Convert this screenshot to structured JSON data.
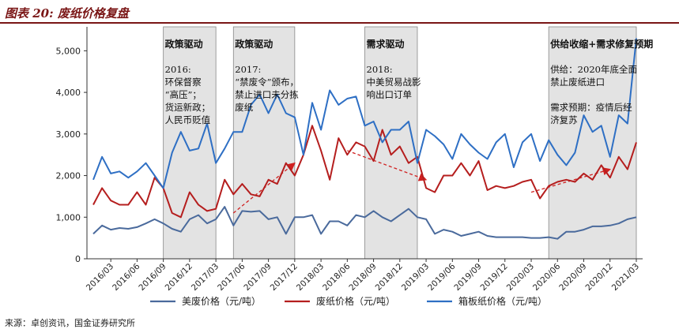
{
  "title": "图表 20:  废纸价格复盘",
  "source": "来源：卓创资讯，国金证券研究所",
  "chart_data": {
    "type": "line",
    "x": [
      "2016/01",
      "2016/02",
      "2016/03",
      "2016/04",
      "2016/05",
      "2016/06",
      "2016/07",
      "2016/08",
      "2016/09",
      "2016/10",
      "2016/11",
      "2016/12",
      "2017/01",
      "2017/02",
      "2017/03",
      "2017/04",
      "2017/05",
      "2017/06",
      "2017/07",
      "2017/08",
      "2017/09",
      "2017/10",
      "2017/11",
      "2017/12",
      "2018/01",
      "2018/02",
      "2018/03",
      "2018/04",
      "2018/05",
      "2018/06",
      "2018/07",
      "2018/08",
      "2018/09",
      "2018/10",
      "2018/11",
      "2018/12",
      "2019/01",
      "2019/02",
      "2019/03",
      "2019/04",
      "2019/05",
      "2019/06",
      "2019/07",
      "2019/08",
      "2019/09",
      "2019/10",
      "2019/11",
      "2019/12",
      "2020/01",
      "2020/02",
      "2020/03",
      "2020/04",
      "2020/05",
      "2020/06",
      "2020/07",
      "2020/08",
      "2020/09",
      "2020/10",
      "2020/11",
      "2020/12",
      "2021/01",
      "2021/02",
      "2021/03"
    ],
    "xticks": [
      "2016/03",
      "2016/06",
      "2016/09",
      "2016/12",
      "2017/03",
      "2017/06",
      "2017/09",
      "2017/12",
      "2018/03",
      "2018/06",
      "2018/09",
      "2018/12",
      "2019/03",
      "2019/06",
      "2019/09",
      "2019/12",
      "2020/03",
      "2020/06",
      "2020/09",
      "2020/12",
      "2021/03"
    ],
    "ylim": [
      0,
      5500
    ],
    "yticks": [
      0,
      1000,
      2000,
      3000,
      4000,
      5000
    ],
    "ytick_labels": [
      "0",
      "1,000",
      "2,000",
      "3,000",
      "4,000",
      "5,000"
    ],
    "grid": false,
    "legend_position": "bottom",
    "series": [
      {
        "name": "美废价格（元/吨）",
        "color": "#4a6a9c",
        "values": [
          600,
          800,
          700,
          740,
          720,
          760,
          850,
          950,
          850,
          720,
          650,
          950,
          1050,
          850,
          950,
          1250,
          800,
          1150,
          1130,
          1150,
          950,
          1000,
          600,
          1000,
          1000,
          1050,
          600,
          900,
          900,
          800,
          1050,
          1000,
          1150,
          1000,
          900,
          1050,
          1200,
          1000,
          950,
          600,
          700,
          650,
          550,
          600,
          650,
          550,
          520,
          520,
          520,
          520,
          500,
          500,
          520,
          480,
          650,
          650,
          700,
          780,
          780,
          800,
          850,
          950,
          1000
        ]
      },
      {
        "name": "废纸价格（元/吨）",
        "color": "#b51e1e",
        "values": [
          1300,
          1700,
          1400,
          1300,
          1300,
          1600,
          1300,
          1950,
          1700,
          1100,
          1000,
          1600,
          1300,
          1150,
          1200,
          1900,
          1550,
          1800,
          1550,
          1500,
          1900,
          1800,
          2300,
          2000,
          2500,
          3200,
          2600,
          1900,
          2900,
          2500,
          2800,
          2700,
          2350,
          3100,
          2500,
          2700,
          2300,
          2450,
          1700,
          1600,
          2000,
          2000,
          2300,
          2000,
          2350,
          1650,
          1750,
          1700,
          1750,
          1850,
          1900,
          1450,
          1750,
          1850,
          1900,
          1850,
          2050,
          1900,
          2250,
          1950,
          2450,
          2150,
          2800
        ]
      },
      {
        "name": "箱板纸价格（元/吨）",
        "color": "#2e6fc4",
        "values": [
          1900,
          2450,
          2050,
          2100,
          1950,
          2100,
          2300,
          2000,
          1700,
          2550,
          3050,
          2600,
          2650,
          3250,
          2300,
          2650,
          3050,
          3050,
          3700,
          3950,
          3500,
          3950,
          3500,
          3400,
          2500,
          3750,
          3100,
          4050,
          3700,
          3850,
          3900,
          3200,
          3300,
          2800,
          3100,
          3100,
          3300,
          2300,
          3100,
          2950,
          2750,
          2400,
          3000,
          2750,
          2550,
          2400,
          2800,
          3000,
          2200,
          2800,
          3000,
          2350,
          2850,
          2500,
          2250,
          2550,
          3450,
          3050,
          3200,
          2450,
          3450,
          3250,
          5300
        ]
      }
    ],
    "shaded_periods": [
      {
        "label": "政策驱动",
        "from": "2016/09",
        "to": "2017/03",
        "note": [
          "2016:",
          "环保督察",
          "“高压”；",
          "货运新政；",
          "人民币贬值"
        ]
      },
      {
        "label": "政策驱动",
        "from": "2017/05",
        "to": "2017/12",
        "note": [
          "2017:",
          "“禁废令”颁布，",
          "禁止进口未分拣",
          "废纸"
        ]
      },
      {
        "label": "需求驱动",
        "from": "2018/08",
        "to": "2019/02",
        "note": [
          "2018:",
          "中美贸易战影",
          "响出口订单"
        ]
      },
      {
        "label": "供给收缩+需求修复预期",
        "from": "2020/05",
        "to": "2021/03",
        "note": [
          "供给：2020年底全面",
          "禁止废纸进口",
          "",
          "需求预期：疫情后经",
          "济复苏"
        ]
      }
    ],
    "trend_arrows": [
      {
        "from": [
          "2017/05",
          1100
        ],
        "to": [
          "2017/12",
          2300
        ]
      },
      {
        "from": [
          "2018/06",
          2600
        ],
        "to": [
          "2019/03",
          1900
        ]
      },
      {
        "from": [
          "2020/03",
          1600
        ],
        "to": [
          "2020/12",
          2150
        ]
      }
    ]
  }
}
